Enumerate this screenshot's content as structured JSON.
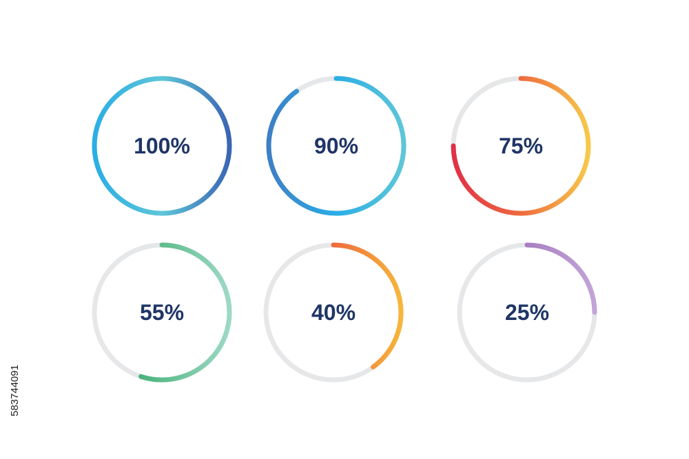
{
  "track_color": "#e6e7e9",
  "label_color": "#1f3566",
  "rings": [
    {
      "label": "100%",
      "percent": 100,
      "gradient": [
        "#2aaee6",
        "#5ec6d8",
        "#3a66b4"
      ]
    },
    {
      "label": "90%",
      "percent": 90,
      "gradient": [
        "#3d7fc6",
        "#2aaee6",
        "#5ec6d8"
      ]
    },
    {
      "label": "75%",
      "percent": 75,
      "gradient": [
        "#e03046",
        "#ee6b3e",
        "#f7c84a"
      ]
    },
    {
      "label": "55%",
      "percent": 55,
      "gradient": [
        "#1f9a5a",
        "#5ebc8c",
        "#9dd9c6"
      ]
    },
    {
      "label": "40%",
      "percent": 40,
      "gradient": [
        "#e03046",
        "#ee6b3e",
        "#f7b63a"
      ]
    },
    {
      "label": "25%",
      "percent": 25,
      "gradient": [
        "#7a3a98",
        "#a880c2",
        "#c2a4d8"
      ]
    }
  ],
  "watermark_id": "583744091"
}
